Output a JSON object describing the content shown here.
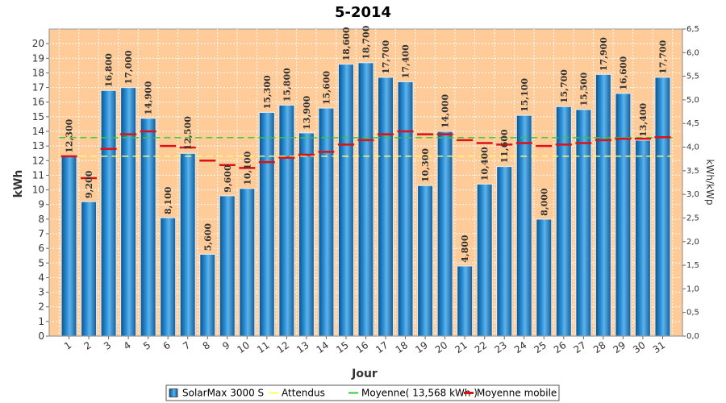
{
  "chart_data": {
    "type": "bar",
    "title": "5-2014",
    "xlabel": "Jour",
    "ylabel": "kWh",
    "y2label": "kWh/kWp",
    "ylim": [
      0,
      21
    ],
    "y2lim": [
      0,
      6.5
    ],
    "categories": [
      "1",
      "2",
      "3",
      "4",
      "5",
      "6",
      "7",
      "8",
      "9",
      "10",
      "11",
      "12",
      "13",
      "14",
      "15",
      "16",
      "17",
      "18",
      "19",
      "20",
      "21",
      "22",
      "23",
      "24",
      "25",
      "26",
      "27",
      "28",
      "29",
      "30",
      "31"
    ],
    "bar_labels": [
      "12,300",
      "9,200",
      "16,800",
      "17,000",
      "14,900",
      "8,100",
      "12,500",
      "5,600",
      "9,600",
      "10,100",
      "15,300",
      "15,800",
      "13,900",
      "15,600",
      "18,600",
      "18,700",
      "17,700",
      "17,400",
      "10,300",
      "14,000",
      "4,800",
      "10,400",
      "11,600",
      "15,100",
      "8,000",
      "15,700",
      "15,500",
      "17,900",
      "16,600",
      "13,400",
      "17,700"
    ],
    "y_ticks": [
      "0",
      "1",
      "2",
      "3",
      "4",
      "5",
      "6",
      "7",
      "8",
      "9",
      "10",
      "11",
      "12",
      "13",
      "14",
      "15",
      "16",
      "17",
      "18",
      "19",
      "20"
    ],
    "y2_ticks": [
      "0,0",
      "0,5",
      "1,0",
      "1,5",
      "2,0",
      "2,5",
      "3,0",
      "3,5",
      "4,0",
      "4,5",
      "5,0",
      "5,5",
      "6,0",
      "6,5"
    ],
    "series": [
      {
        "name": "SolarMax 3000 S",
        "kind": "bar",
        "color": "#1f6fb4",
        "values": [
          12.3,
          9.2,
          16.8,
          17.0,
          14.9,
          8.1,
          12.5,
          5.6,
          9.6,
          10.1,
          15.3,
          15.8,
          13.9,
          15.6,
          18.6,
          18.7,
          17.7,
          17.4,
          10.3,
          14.0,
          4.8,
          10.4,
          11.6,
          15.1,
          8.0,
          15.7,
          15.5,
          17.9,
          16.6,
          13.4,
          17.7
        ]
      },
      {
        "name": "Attendus",
        "kind": "line",
        "color": "#ffff66",
        "values": [
          12.3,
          12.3,
          12.3,
          12.3,
          12.3,
          12.3,
          12.3,
          12.3,
          12.3,
          12.3,
          12.3,
          12.3,
          12.3,
          12.3,
          12.3,
          12.3,
          12.3,
          12.3,
          12.3,
          12.3,
          12.3,
          12.3,
          12.3,
          12.3,
          12.3,
          12.3,
          12.3,
          12.3,
          12.3,
          12.3,
          12.3
        ]
      },
      {
        "name": "Moyenne( 13,568 kWh )",
        "kind": "line",
        "color": "#33cc33",
        "values": [
          13.568,
          13.568,
          13.568,
          13.568,
          13.568,
          13.568,
          13.568,
          13.568,
          13.568,
          13.568,
          13.568,
          13.568,
          13.568,
          13.568,
          13.568,
          13.568,
          13.568,
          13.568,
          13.568,
          13.568,
          13.568,
          13.568,
          13.568,
          13.568,
          13.568,
          13.568,
          13.568,
          13.568,
          13.568,
          13.568,
          13.568
        ]
      },
      {
        "name": "Moyenne mobile",
        "kind": "marker",
        "color": "#dd1111",
        "values": [
          12.3,
          10.8,
          12.8,
          13.8,
          14.0,
          13.0,
          12.9,
          12.0,
          11.7,
          11.5,
          11.9,
          12.2,
          12.4,
          12.6,
          13.1,
          13.4,
          13.8,
          14.0,
          13.8,
          13.8,
          13.4,
          13.2,
          13.1,
          13.2,
          13.0,
          13.1,
          13.2,
          13.4,
          13.5,
          13.5,
          13.6
        ]
      }
    ],
    "grid": true,
    "legend": "bottom"
  },
  "colors": {
    "plot_background": "#ffcc99",
    "grid": "#ffffff",
    "bar": "#1f6fb4",
    "bar_highlight": "#7fc4f0",
    "bar_edge": "#ffffff"
  }
}
